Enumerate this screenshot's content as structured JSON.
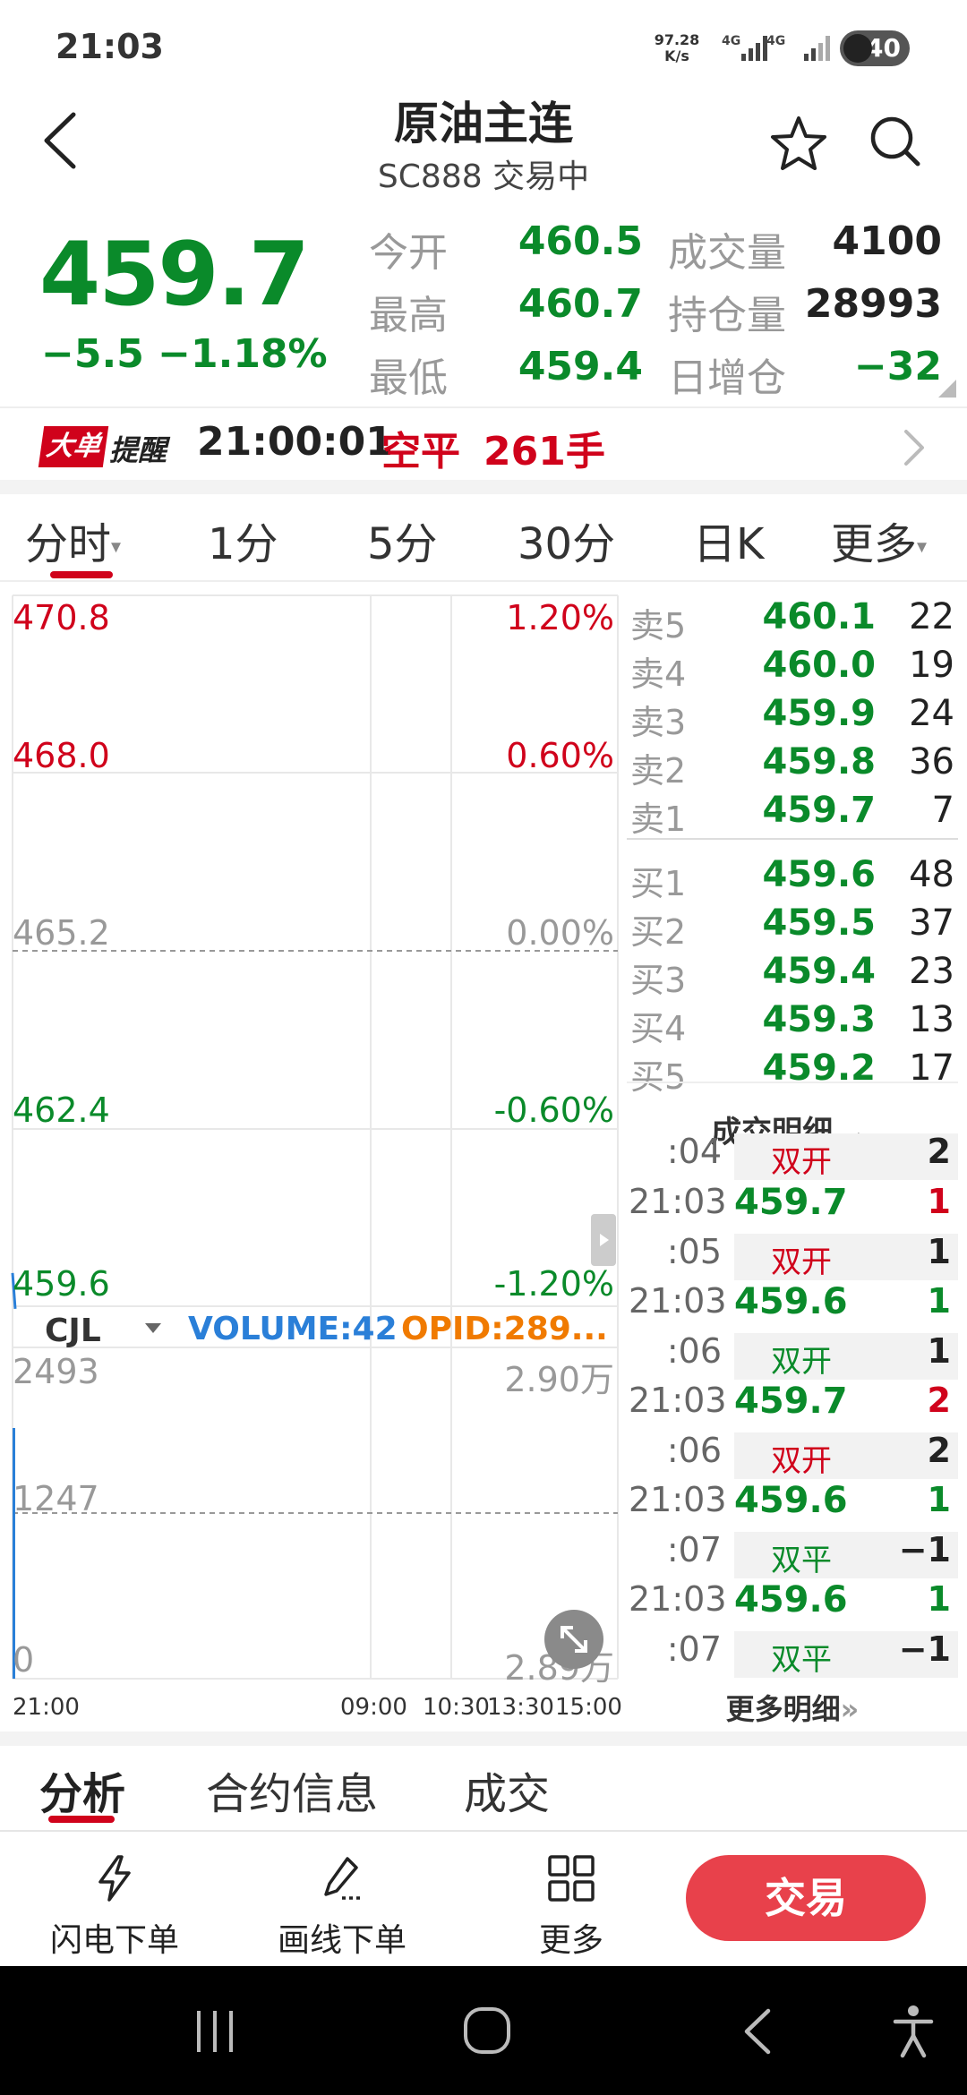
{
  "status_bar": {
    "time": "21:03",
    "net_speed_value": "97.28",
    "net_speed_unit": "K/s",
    "sim1": "4G",
    "sim2": "4G",
    "battery": "40"
  },
  "header": {
    "title": "原油主连",
    "subtitle": "SC888 交易中"
  },
  "quote": {
    "price": "459.7",
    "change": "−5.5 −1.18%",
    "stats": [
      {
        "label": "今开",
        "value": "460.5",
        "color": "#0a8a2a"
      },
      {
        "label": "最高",
        "value": "460.7",
        "color": "#0a8a2a"
      },
      {
        "label": "最低",
        "value": "459.4",
        "color": "#0a8a2a"
      }
    ],
    "stats2": [
      {
        "label": "成交量",
        "value": "4100",
        "color": "#222222"
      },
      {
        "label": "持仓量",
        "value": "28993",
        "color": "#222222"
      },
      {
        "label": "日增仓",
        "value": "−32",
        "color": "#0a8a2a"
      }
    ]
  },
  "alert": {
    "badge1": "大单",
    "badge2": "提醒",
    "time": "21:00:01",
    "type": "空平",
    "qty": "261手"
  },
  "period_tabs": [
    "分时",
    "1分",
    "5分",
    "30分",
    "日K",
    "更多"
  ],
  "chart": {
    "price_left": [
      "470.8",
      "468.0",
      "465.2",
      "462.4",
      "459.6"
    ],
    "price_right": [
      "1.20%",
      "0.60%",
      "0.00%",
      "-0.60%",
      "-1.20%"
    ],
    "indicator": "CJL",
    "volume_text": "VOLUME:42",
    "opid_text": "OPID:289...",
    "vol_left": [
      "2493",
      "1247",
      "0"
    ],
    "vol_right": [
      "2.90万",
      "2.89万"
    ],
    "time_ticks": [
      "21:00",
      "09:00",
      "10:30",
      "13:30",
      "15:00"
    ]
  },
  "chart_data": {
    "type": "line",
    "x": [
      "21:00"
    ],
    "series": [
      {
        "values": [
          459.7
        ]
      }
    ],
    "ylim": [
      459.6,
      470.8
    ],
    "y_ticks": [
      "470.8",
      "468.0",
      "465.2",
      "462.4",
      "459.6"
    ],
    "volume_ylim": [
      0,
      2493
    ]
  },
  "order_book": {
    "asks": [
      {
        "label": "卖5",
        "price": "460.1",
        "vol": "22"
      },
      {
        "label": "卖4",
        "price": "460.0",
        "vol": "19"
      },
      {
        "label": "卖3",
        "price": "459.9",
        "vol": "24"
      },
      {
        "label": "卖2",
        "price": "459.8",
        "vol": "36"
      },
      {
        "label": "卖1",
        "price": "459.7",
        "vol": "7"
      }
    ],
    "bids": [
      {
        "label": "买1",
        "price": "459.6",
        "vol": "48"
      },
      {
        "label": "买2",
        "price": "459.5",
        "vol": "37"
      },
      {
        "label": "买3",
        "price": "459.4",
        "vol": "23"
      },
      {
        "label": "买4",
        "price": "459.3",
        "vol": "13"
      },
      {
        "label": "买5",
        "price": "459.2",
        "vol": "17"
      }
    ]
  },
  "trades": {
    "header": "成交明细",
    "partial_time": ":04",
    "partial_type": "双开",
    "partial_qty": "2",
    "rows": [
      {
        "time": "21:03",
        "price": "459.7",
        "qty": "1",
        "qty_color": "#d0021b"
      },
      {
        "time": ":05",
        "type": "双开",
        "type_color": "#d0021b",
        "qty": "1",
        "qty_color": "#222222"
      },
      {
        "time": "21:03",
        "price": "459.6",
        "qty": "1",
        "qty_color": "#0a8a2a"
      },
      {
        "time": ":06",
        "type": "双开",
        "type_color": "#0a8a2a",
        "qty": "1",
        "qty_color": "#222222"
      },
      {
        "time": "21:03",
        "price": "459.7",
        "qty": "2",
        "qty_color": "#d0021b"
      },
      {
        "time": ":06",
        "type": "双开",
        "type_color": "#d0021b",
        "qty": "2",
        "qty_color": "#222222"
      },
      {
        "time": "21:03",
        "price": "459.6",
        "qty": "1",
        "qty_color": "#0a8a2a"
      },
      {
        "time": ":07",
        "type": "双平",
        "type_color": "#0a8a2a",
        "qty": "−1",
        "qty_color": "#222222"
      },
      {
        "time": "21:03",
        "price": "459.6",
        "qty": "1",
        "qty_color": "#0a8a2a"
      },
      {
        "time": ":07",
        "type": "双平",
        "type_color": "#0a8a2a",
        "qty": "−1",
        "qty_color": "#222222"
      }
    ],
    "more": "更多明细"
  },
  "bottom_tabs": [
    "分析",
    "合约信息",
    "成交"
  ],
  "actions": {
    "flash_order": "闪电下单",
    "draw_order": "画线下单",
    "more": "更多",
    "trade": "交易"
  },
  "colors": {
    "up": "#d0021b",
    "down": "#0a8a2a",
    "accent": "#e8414b"
  }
}
